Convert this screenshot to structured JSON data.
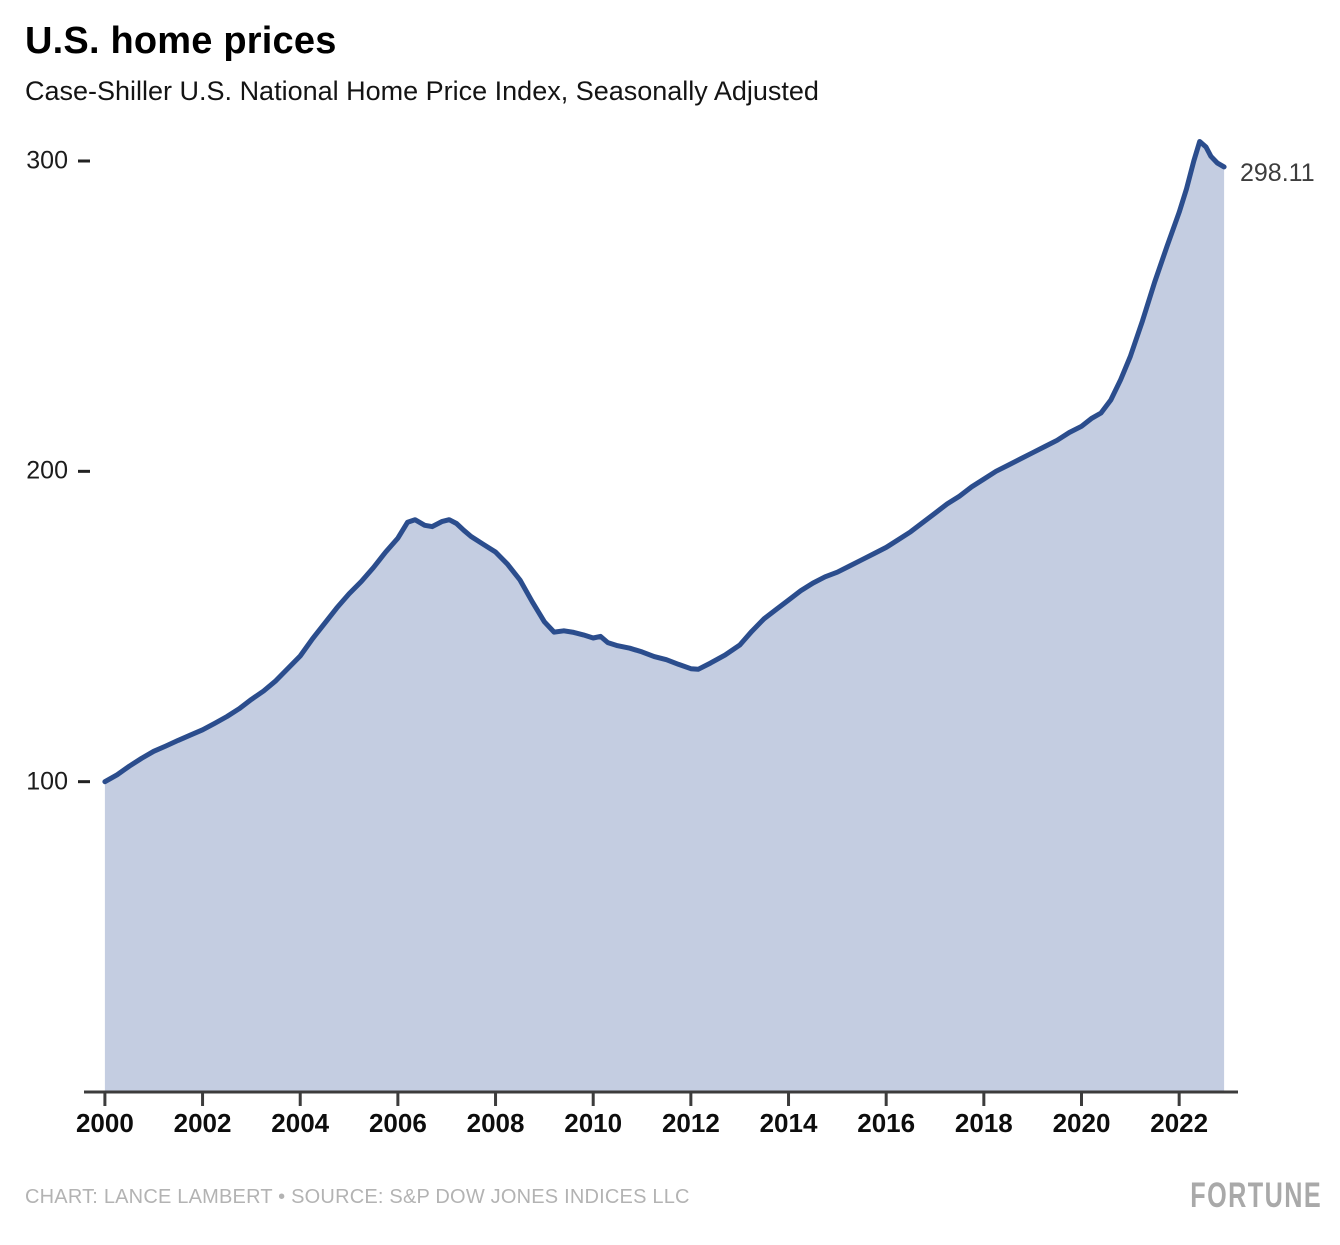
{
  "header": {
    "title": "U.S. home prices",
    "subtitle": "Case-Shiller U.S. National Home Price Index, Seasonally Adjusted"
  },
  "chart_data": {
    "type": "area",
    "title": "U.S. home prices",
    "subtitle": "Case-Shiller U.S. National Home Price Index, Seasonally Adjusted",
    "xlabel": "",
    "ylabel": "",
    "x_ticks": [
      2000,
      2002,
      2004,
      2006,
      2008,
      2010,
      2012,
      2014,
      2016,
      2018,
      2020,
      2022
    ],
    "y_ticks": [
      100,
      200,
      300
    ],
    "x_range": [
      2000,
      2023
    ],
    "y_range": [
      0,
      310
    ],
    "grid": "off",
    "legend": "none",
    "end_label": "298.11",
    "colors": {
      "line": "#2b4d8d",
      "fill": "#c4cde1",
      "axis": "#3c3c3c"
    },
    "series": [
      {
        "name": "Case-Shiller U.S. National Home Price Index, Seasonally Adjusted",
        "points": [
          [
            2000.0,
            100.0
          ],
          [
            2000.25,
            102.2
          ],
          [
            2000.5,
            105.0
          ],
          [
            2000.75,
            107.5
          ],
          [
            2001.0,
            109.8
          ],
          [
            2001.25,
            111.5
          ],
          [
            2001.5,
            113.3
          ],
          [
            2001.75,
            115.0
          ],
          [
            2002.0,
            116.7
          ],
          [
            2002.25,
            118.8
          ],
          [
            2002.5,
            121.0
          ],
          [
            2002.75,
            123.5
          ],
          [
            2003.0,
            126.5
          ],
          [
            2003.25,
            129.2
          ],
          [
            2003.5,
            132.5
          ],
          [
            2003.75,
            136.5
          ],
          [
            2004.0,
            140.5
          ],
          [
            2004.25,
            146.0
          ],
          [
            2004.5,
            151.0
          ],
          [
            2004.75,
            156.0
          ],
          [
            2005.0,
            160.5
          ],
          [
            2005.25,
            164.5
          ],
          [
            2005.5,
            169.0
          ],
          [
            2005.75,
            174.0
          ],
          [
            2006.0,
            178.5
          ],
          [
            2006.2,
            183.6
          ],
          [
            2006.35,
            184.4
          ],
          [
            2006.55,
            182.6
          ],
          [
            2006.7,
            182.2
          ],
          [
            2006.9,
            183.8
          ],
          [
            2007.05,
            184.4
          ],
          [
            2007.2,
            183.2
          ],
          [
            2007.35,
            181.0
          ],
          [
            2007.5,
            179.0
          ],
          [
            2007.75,
            176.5
          ],
          [
            2008.0,
            174.0
          ],
          [
            2008.25,
            170.0
          ],
          [
            2008.5,
            165.0
          ],
          [
            2008.75,
            158.0
          ],
          [
            2009.0,
            151.5
          ],
          [
            2009.2,
            148.2
          ],
          [
            2009.4,
            148.6
          ],
          [
            2009.6,
            148.1
          ],
          [
            2009.8,
            147.3
          ],
          [
            2010.0,
            146.3
          ],
          [
            2010.15,
            146.8
          ],
          [
            2010.3,
            144.8
          ],
          [
            2010.5,
            143.8
          ],
          [
            2010.75,
            143.0
          ],
          [
            2011.0,
            141.8
          ],
          [
            2011.25,
            140.3
          ],
          [
            2011.5,
            139.3
          ],
          [
            2011.75,
            137.8
          ],
          [
            2012.0,
            136.4
          ],
          [
            2012.15,
            136.2
          ],
          [
            2012.4,
            138.2
          ],
          [
            2012.7,
            140.8
          ],
          [
            2013.0,
            144.0
          ],
          [
            2013.25,
            148.5
          ],
          [
            2013.5,
            152.5
          ],
          [
            2013.75,
            155.5
          ],
          [
            2014.0,
            158.5
          ],
          [
            2014.25,
            161.5
          ],
          [
            2014.5,
            164.0
          ],
          [
            2014.75,
            166.0
          ],
          [
            2015.0,
            167.5
          ],
          [
            2015.25,
            169.5
          ],
          [
            2015.5,
            171.5
          ],
          [
            2015.75,
            173.5
          ],
          [
            2016.0,
            175.5
          ],
          [
            2016.25,
            178.0
          ],
          [
            2016.5,
            180.5
          ],
          [
            2016.75,
            183.5
          ],
          [
            2017.0,
            186.5
          ],
          [
            2017.25,
            189.5
          ],
          [
            2017.5,
            192.0
          ],
          [
            2017.75,
            195.0
          ],
          [
            2018.0,
            197.5
          ],
          [
            2018.25,
            200.0
          ],
          [
            2018.5,
            202.0
          ],
          [
            2018.75,
            204.0
          ],
          [
            2019.0,
            206.0
          ],
          [
            2019.25,
            208.0
          ],
          [
            2019.5,
            210.0
          ],
          [
            2019.75,
            212.5
          ],
          [
            2020.0,
            214.5
          ],
          [
            2020.2,
            217.0
          ],
          [
            2020.4,
            218.8
          ],
          [
            2020.6,
            223.0
          ],
          [
            2020.8,
            229.5
          ],
          [
            2021.0,
            237.0
          ],
          [
            2021.25,
            248.5
          ],
          [
            2021.5,
            261.0
          ],
          [
            2021.75,
            272.5
          ],
          [
            2022.0,
            283.5
          ],
          [
            2022.15,
            291.0
          ],
          [
            2022.3,
            300.0
          ],
          [
            2022.42,
            306.3
          ],
          [
            2022.55,
            304.5
          ],
          [
            2022.65,
            301.5
          ],
          [
            2022.78,
            299.4
          ],
          [
            2022.92,
            298.11
          ]
        ]
      }
    ]
  },
  "footer": {
    "credit": "CHART: LANCE LAMBERT • SOURCE: S&P DOW JONES INDICES LLC",
    "brand": "FORTUNE"
  }
}
